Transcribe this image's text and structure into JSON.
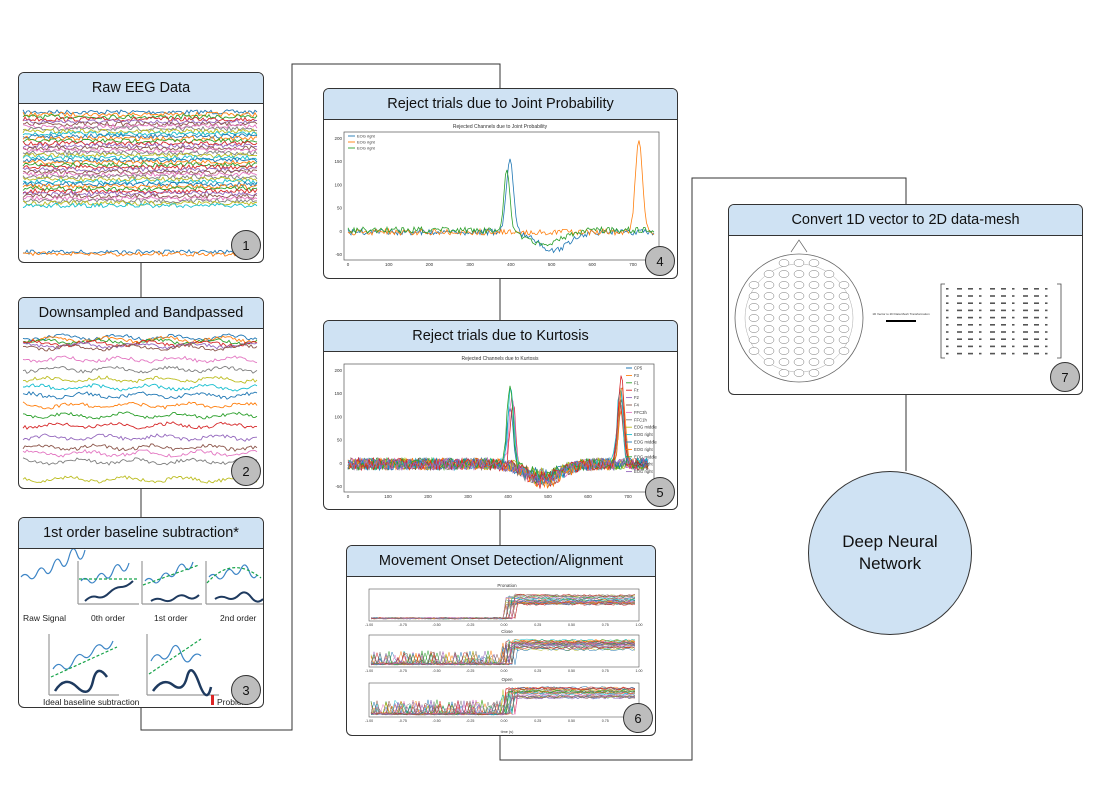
{
  "steps": [
    {
      "num": "1",
      "title": "Raw EEG Data"
    },
    {
      "num": "2",
      "title": "Downsampled and Bandpassed"
    },
    {
      "num": "3",
      "title": "1st order baseline subtraction*"
    },
    {
      "num": "4",
      "title": "Reject trials due to Joint Probability"
    },
    {
      "num": "5",
      "title": "Reject trials due to Kurtosis"
    },
    {
      "num": "6",
      "title": "Movement Onset Detection/Alignment"
    },
    {
      "num": "7",
      "title": "Convert 1D vector to 2D data-mesh"
    }
  ],
  "network": {
    "line1": "Deep Neural",
    "line2": "Network"
  },
  "baseline": {
    "labels": [
      "Raw Signal",
      "0th order",
      "1st order",
      "2nd order",
      "Ideal baseline subtraction",
      "Problem"
    ]
  },
  "joint_plot": {
    "title": "Rejected Channels due to Joint Probability",
    "legend": [
      "EOG right",
      "EOG right",
      "EOG right"
    ],
    "yticks": [
      "200",
      "150",
      "100",
      "50",
      "0",
      "-50"
    ],
    "xticks": [
      "0",
      "100",
      "200",
      "300",
      "400",
      "500",
      "600",
      "700"
    ]
  },
  "kurtosis_plot": {
    "title": "Rejected Channels due to Kurtosis",
    "legend": [
      "CP5",
      "F3",
      "F1",
      "Fz",
      "F2",
      "F4",
      "FFC3h",
      "FFC1h",
      "EOG middle",
      "EOG right",
      "EOG middle",
      "EOG right",
      "EOG middle",
      "EOG right",
      "EOG right"
    ],
    "yticks": [
      "200",
      "150",
      "100",
      "50",
      "0",
      "-50"
    ],
    "xticks": [
      "0",
      "100",
      "200",
      "300",
      "400",
      "500",
      "600",
      "700"
    ]
  },
  "onset_plot": {
    "subplots": [
      "Pronation",
      "Close",
      "Open"
    ],
    "xticks": [
      "-1.00",
      "-0.75",
      "-0.50",
      "-0.25",
      "0.00",
      "0.25",
      "0.50",
      "0.75",
      "1.00"
    ],
    "xlabel": "time (s)"
  },
  "mesh": {
    "arrow_label": "1D Vector to 2D Data Mesh Transformation"
  },
  "colors": {
    "header": "#cfe2f3",
    "badge": "#bdbdbd",
    "border": "#333333"
  }
}
